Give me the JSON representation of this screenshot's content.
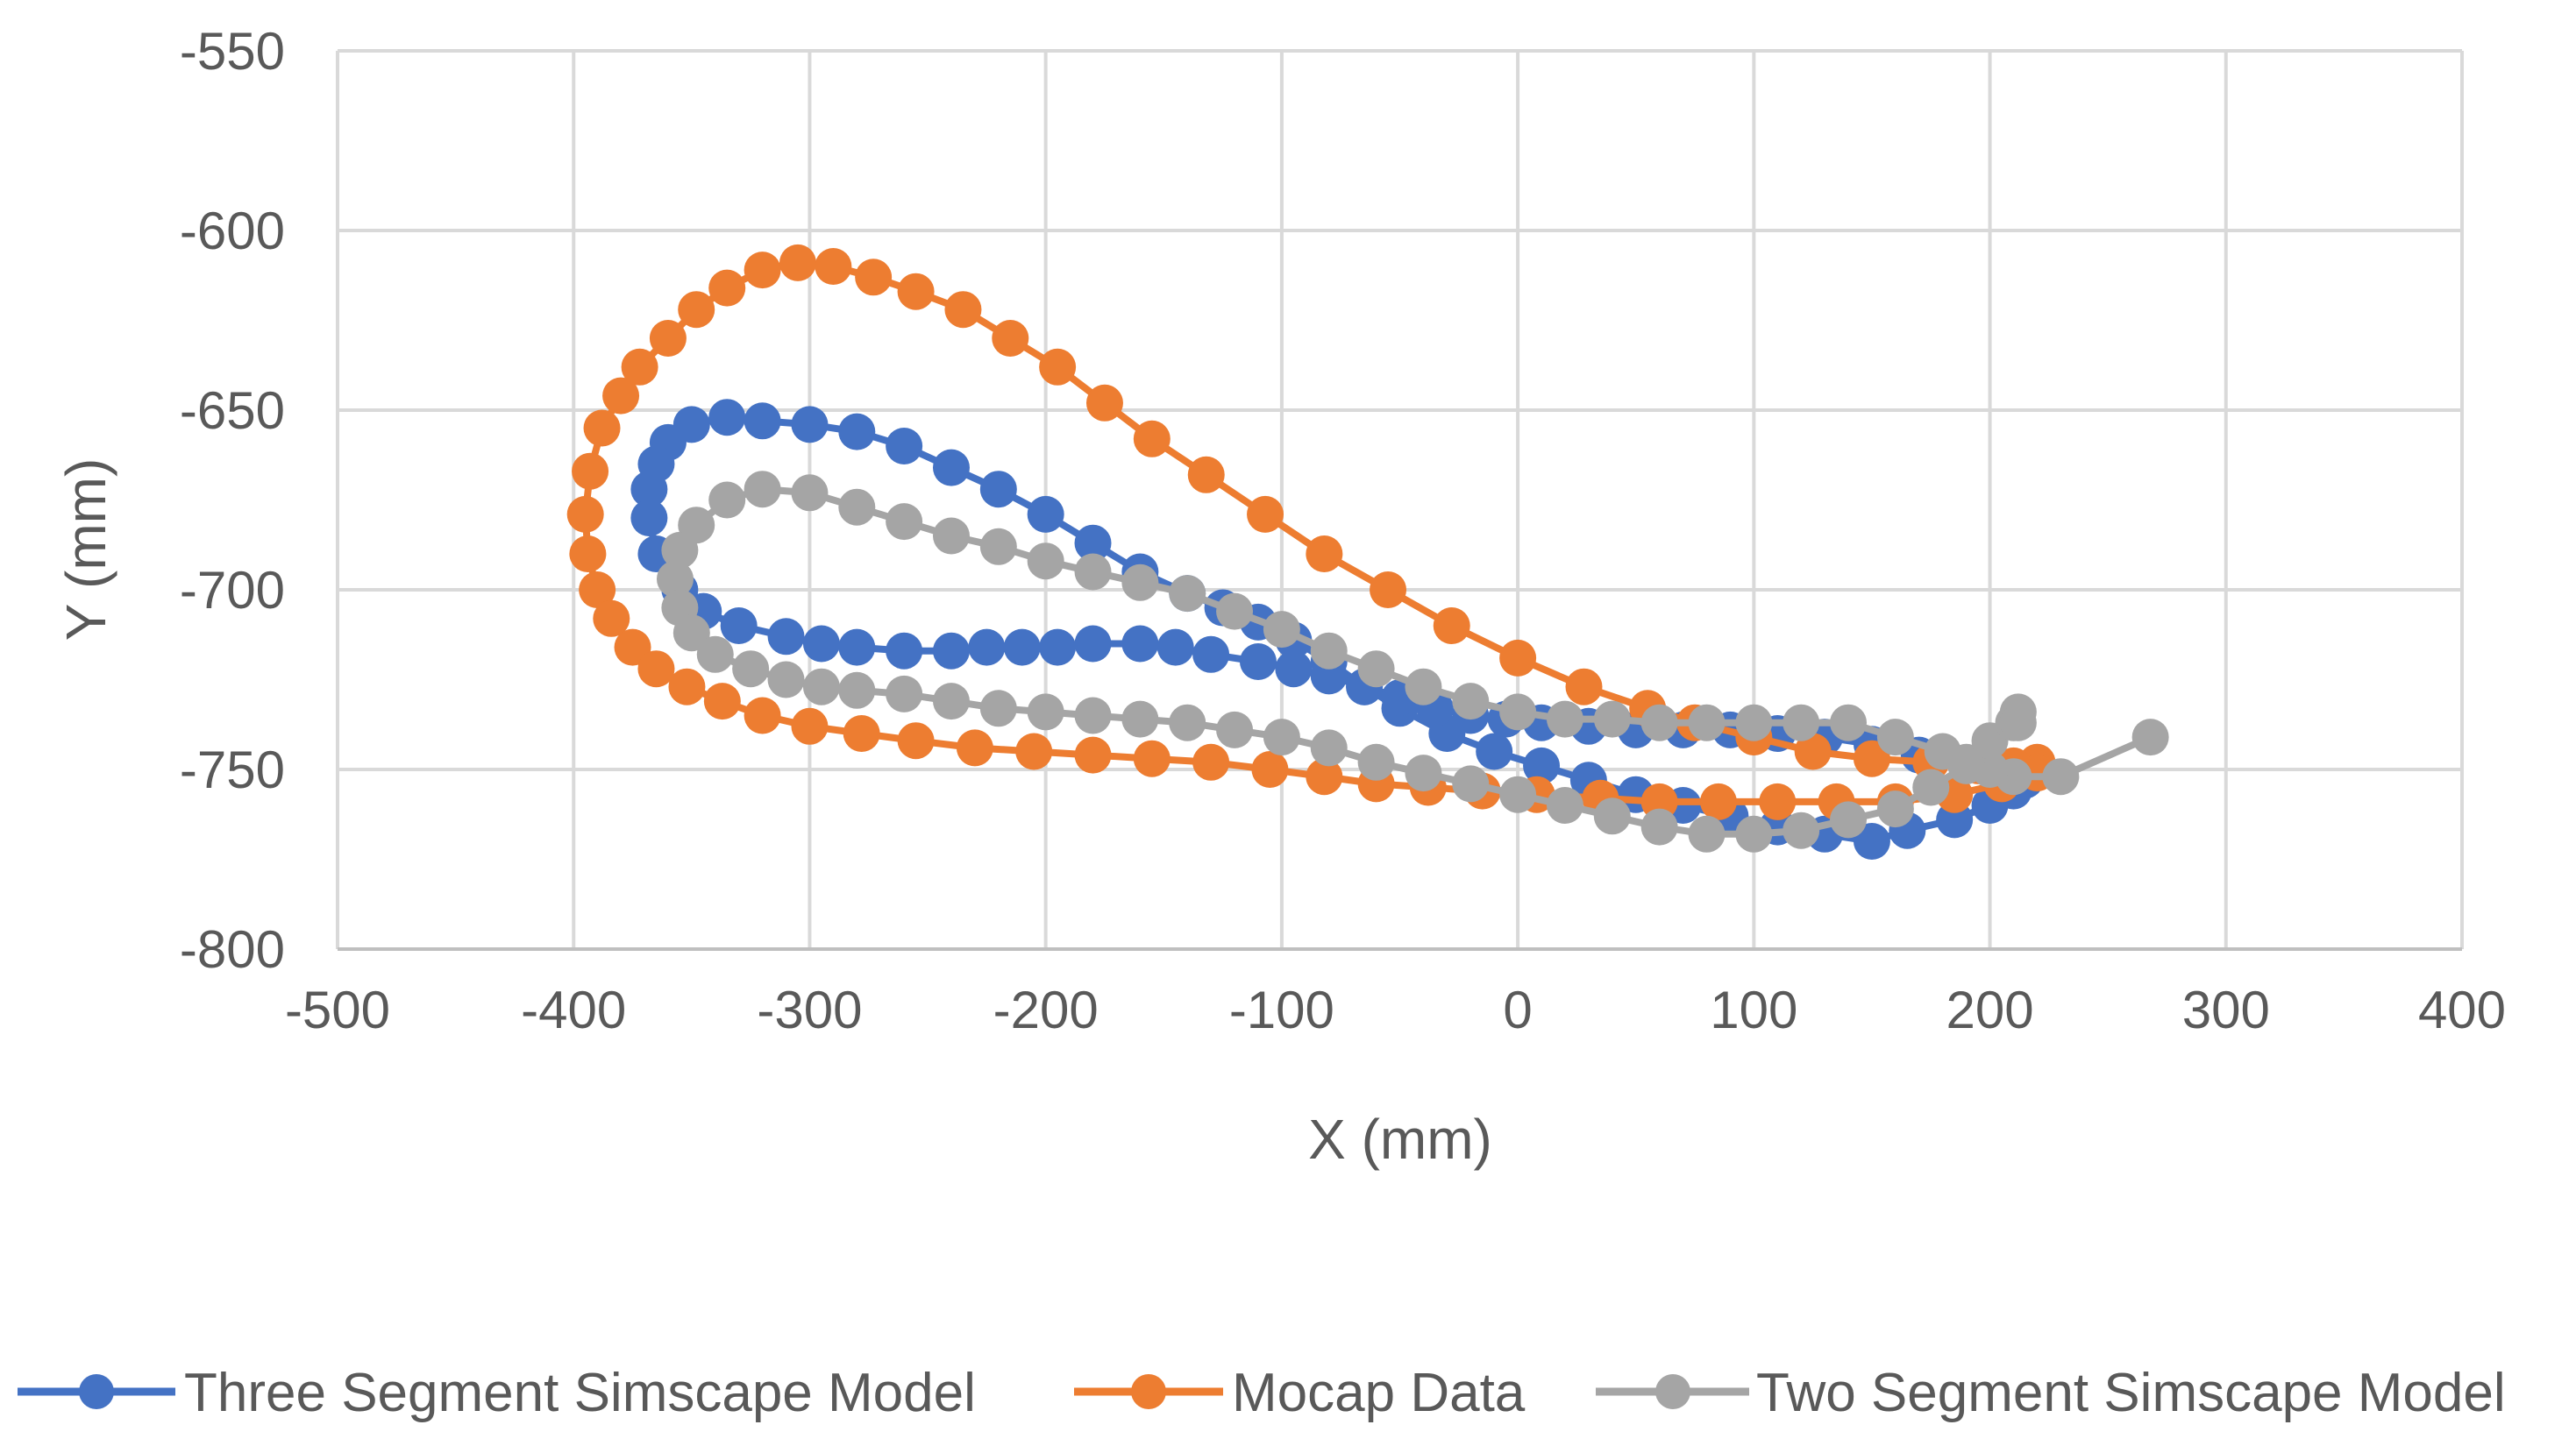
{
  "chart_data": {
    "type": "scatter",
    "title": "",
    "xlabel": "X (mm)",
    "ylabel": "Y (mm)",
    "xlim": [
      -500,
      400
    ],
    "ylim": [
      -800,
      -550
    ],
    "xticks": [
      -500,
      -400,
      -300,
      -200,
      -100,
      0,
      100,
      200,
      300,
      400
    ],
    "yticks": [
      -550,
      -600,
      -650,
      -700,
      -750,
      -800
    ],
    "xtick_labels": [
      "-500",
      "-400",
      "-300",
      "-200",
      "-100",
      "0",
      "100",
      "200",
      "300",
      "400"
    ],
    "ytick_labels": [
      "-550",
      "-600",
      "-650",
      "-700",
      "-750",
      "-800"
    ],
    "grid": true,
    "legend_position": "bottom",
    "series": [
      {
        "name": "Three Segment Simscape Model",
        "color": "#4472C4",
        "x": [
          215,
          210,
          200,
          185,
          165,
          150,
          130,
          110,
          90,
          70,
          50,
          30,
          10,
          -10,
          -30,
          -50,
          -65,
          -80,
          -95,
          -110,
          -125,
          -140,
          -160,
          -180,
          -200,
          -220,
          -240,
          -260,
          -280,
          -300,
          -320,
          -335,
          -350,
          -360,
          -365,
          -368,
          -368,
          -365,
          -355,
          -345,
          -330,
          -310,
          -295,
          -280,
          -260,
          -240,
          -225,
          -210,
          -195,
          -180,
          -160,
          -145,
          -130,
          -110,
          -95,
          -80,
          -65,
          -50,
          -35,
          -20,
          -5,
          10,
          30,
          50,
          70,
          90,
          110,
          130,
          150,
          170,
          190,
          210
        ],
        "y": [
          -753,
          -756,
          -760,
          -764,
          -767,
          -770,
          -768,
          -766,
          -763,
          -760,
          -757,
          -753,
          -749,
          -745,
          -740,
          -733,
          -727,
          -720,
          -714,
          -709,
          -705,
          -701,
          -695,
          -687,
          -679,
          -672,
          -666,
          -660,
          -656,
          -654,
          -653,
          -652,
          -654,
          -659,
          -665,
          -672,
          -680,
          -690,
          -700,
          -706,
          -710,
          -713,
          -715,
          -716,
          -717,
          -717,
          -716,
          -716,
          -716,
          -715,
          -715,
          -716,
          -718,
          -720,
          -722,
          -724,
          -727,
          -730,
          -733,
          -735,
          -736,
          -737,
          -738,
          -739,
          -739,
          -739,
          -740,
          -741,
          -743,
          -746,
          -749,
          -752
        ]
      },
      {
        "name": "Mocap Data",
        "color": "#ED7D31",
        "x": [
          220,
          210,
          195,
          175,
          150,
          125,
          100,
          75,
          55,
          28,
          0,
          -28,
          -55,
          -82,
          -107,
          -132,
          -155,
          -175,
          -195,
          -215,
          -235,
          -255,
          -273,
          -290,
          -305,
          -320,
          -335,
          -348,
          -360,
          -372,
          -380,
          -388,
          -393,
          -395,
          -394,
          -390,
          -384,
          -375,
          -365,
          -352,
          -337,
          -320,
          -300,
          -278,
          -255,
          -230,
          -205,
          -180,
          -155,
          -130,
          -105,
          -82,
          -60,
          -38,
          -15,
          8,
          35,
          60,
          85,
          110,
          135,
          160,
          185,
          205,
          220
        ],
        "y": [
          -748,
          -749,
          -749,
          -748,
          -747,
          -745,
          -741,
          -737,
          -733,
          -727,
          -719,
          -710,
          -700,
          -690,
          -679,
          -668,
          -658,
          -648,
          -638,
          -630,
          -622,
          -617,
          -613,
          -610,
          -609,
          -611,
          -616,
          -622,
          -630,
          -638,
          -646,
          -655,
          -667,
          -679,
          -690,
          -700,
          -708,
          -716,
          -722,
          -727,
          -731,
          -735,
          -738,
          -740,
          -742,
          -744,
          -745,
          -746,
          -747,
          -748,
          -750,
          -752,
          -754,
          -755,
          -756,
          -757,
          -758,
          -759,
          -759,
          -759,
          -759,
          -759,
          -757,
          -754,
          -751
        ]
      },
      {
        "name": "Two Segment Simscape Model",
        "color": "#A5A5A5",
        "x": [
          268,
          230,
          210,
          200,
          190,
          180,
          160,
          140,
          120,
          100,
          80,
          60,
          40,
          20,
          0,
          -20,
          -40,
          -60,
          -80,
          -100,
          -120,
          -140,
          -160,
          -180,
          -200,
          -220,
          -240,
          -260,
          -280,
          -300,
          -320,
          -335,
          -348,
          -355,
          -357,
          -355,
          -350,
          -340,
          -325,
          -310,
          -295,
          -280,
          -260,
          -240,
          -220,
          -200,
          -180,
          -160,
          -140,
          -120,
          -100,
          -80,
          -60,
          -40,
          -20,
          0,
          20,
          40,
          60,
          80,
          100,
          120,
          140,
          160,
          175,
          190,
          200,
          210,
          212,
          212
        ],
        "y": [
          -741,
          -752,
          -752,
          -750,
          -748,
          -745,
          -741,
          -737,
          -737,
          -737,
          -737,
          -737,
          -736,
          -736,
          -734,
          -731,
          -727,
          -722,
          -717,
          -711,
          -706,
          -701,
          -698,
          -695,
          -692,
          -688,
          -685,
          -681,
          -677,
          -673,
          -672,
          -675,
          -682,
          -689,
          -697,
          -705,
          -712,
          -718,
          -722,
          -725,
          -727,
          -728,
          -729,
          -731,
          -733,
          -734,
          -735,
          -736,
          -737,
          -739,
          -741,
          -744,
          -748,
          -751,
          -754,
          -757,
          -760,
          -763,
          -766,
          -768,
          -768,
          -767,
          -764,
          -761,
          -755,
          -749,
          -742,
          -737,
          -734,
          -737
        ]
      }
    ]
  }
}
